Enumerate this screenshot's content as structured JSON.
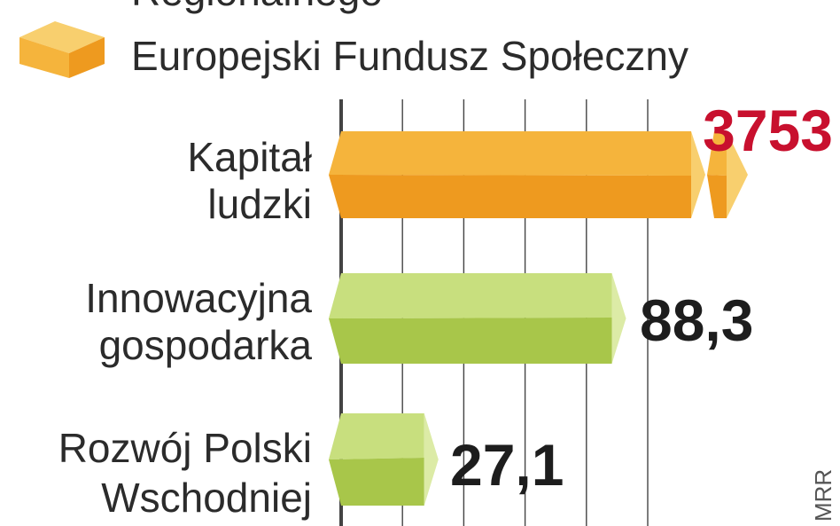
{
  "legend": [
    {
      "label": "Regionalnego",
      "color": "#f5b43c",
      "icon": "box-icon"
    },
    {
      "label": "Europejski Fundusz Społeczny",
      "color": "#f5b43c",
      "icon": "box-icon"
    }
  ],
  "source": "MRR",
  "colors": {
    "orange_top": "#f5b43c",
    "orange_bottom": "#ee9a1f",
    "orange_side": "#f8cf6e",
    "green_top": "#c8df7e",
    "green_bottom": "#a8c64a",
    "green_side": "#dceba6",
    "grid": "#444444",
    "highlight": "#c8102e"
  },
  "chart_data": {
    "type": "bar",
    "orientation": "horizontal",
    "axis_break": true,
    "categories": [
      "Kapitał ludzki",
      "Innowacyjna gospodarka",
      "Rozwój Polski Wschodniej"
    ],
    "category_lines": [
      [
        "Kapitał",
        "ludzki"
      ],
      [
        "Innowacyjna",
        "gospodarka"
      ],
      [
        "Rozwój Polski",
        "Wschodniej"
      ]
    ],
    "values": [
      3753,
      88.3,
      27.1
    ],
    "value_labels": [
      "3753",
      "88,3",
      "27,1"
    ],
    "highlighted_category": "Kapitał ludzki",
    "xlim": [
      0,
      110
    ]
  }
}
